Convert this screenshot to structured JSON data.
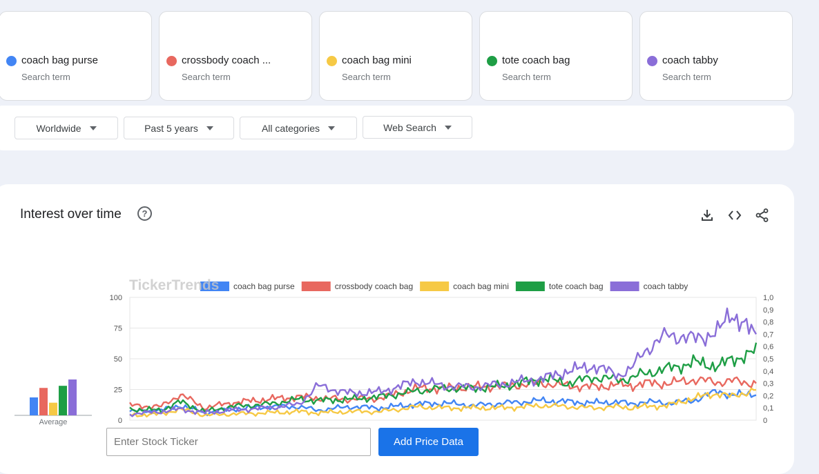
{
  "search_terms": [
    {
      "name": "coach bag purse",
      "sub": "Search term",
      "color": "#4285f4"
    },
    {
      "name": "crossbody coach ...",
      "sub": "Search term",
      "color": "#e8685f"
    },
    {
      "name": "coach bag mini",
      "sub": "Search term",
      "color": "#f6c945"
    },
    {
      "name": "tote coach bag",
      "sub": "Search term",
      "color": "#1e9e45"
    },
    {
      "name": "coach tabby",
      "sub": "Search term",
      "color": "#8a6ed8"
    }
  ],
  "filters": {
    "region": "Worldwide",
    "period": "Past 5 years",
    "category": "All categories",
    "search_type": "Web Search"
  },
  "panel": {
    "title": "Interest over time",
    "help": "?"
  },
  "average": {
    "label": "Average",
    "values": [
      17,
      26,
      12,
      28,
      34
    ]
  },
  "ticker": {
    "placeholder": "Enter Stock Ticker",
    "button": "Add Price Data"
  },
  "chart_data": {
    "type": "line",
    "watermark": "TickerTrends",
    "title": "",
    "xlabel": "",
    "ylabel": "",
    "ylim": [
      0,
      100
    ],
    "yticks": [
      0,
      25,
      50,
      75,
      100
    ],
    "y2lim": [
      0,
      1
    ],
    "y2ticks": [
      "0",
      "0,1",
      "0,2",
      "0,3",
      "0,4",
      "0,5",
      "0,6",
      "0,7",
      "0,8",
      "0,9",
      "1,0"
    ],
    "legend_position": "top",
    "grid": true,
    "series": [
      {
        "name": "coach bag purse",
        "color": "#4285f4",
        "anchors": [
          [
            0,
            7
          ],
          [
            0.05,
            8
          ],
          [
            0.08,
            12
          ],
          [
            0.12,
            6
          ],
          [
            0.16,
            9
          ],
          [
            0.22,
            11
          ],
          [
            0.27,
            11
          ],
          [
            0.3,
            8
          ],
          [
            0.35,
            11
          ],
          [
            0.4,
            10
          ],
          [
            0.46,
            13
          ],
          [
            0.5,
            14
          ],
          [
            0.55,
            12
          ],
          [
            0.6,
            14
          ],
          [
            0.66,
            16
          ],
          [
            0.7,
            15
          ],
          [
            0.74,
            14
          ],
          [
            0.78,
            15
          ],
          [
            0.8,
            13
          ],
          [
            0.82,
            15
          ],
          [
            0.86,
            14
          ],
          [
            0.9,
            16
          ],
          [
            0.94,
            24
          ],
          [
            0.96,
            20
          ],
          [
            1,
            22
          ]
        ]
      },
      {
        "name": "crossbody coach bag",
        "color": "#e8685f",
        "anchors": [
          [
            0,
            12
          ],
          [
            0.05,
            11
          ],
          [
            0.08,
            21
          ],
          [
            0.12,
            10
          ],
          [
            0.16,
            14
          ],
          [
            0.22,
            17
          ],
          [
            0.27,
            19
          ],
          [
            0.3,
            18
          ],
          [
            0.35,
            17
          ],
          [
            0.4,
            18
          ],
          [
            0.46,
            26
          ],
          [
            0.5,
            26
          ],
          [
            0.55,
            27
          ],
          [
            0.6,
            28
          ],
          [
            0.66,
            30
          ],
          [
            0.7,
            28
          ],
          [
            0.74,
            27
          ],
          [
            0.78,
            29
          ],
          [
            0.8,
            28
          ],
          [
            0.82,
            30
          ],
          [
            0.86,
            30
          ],
          [
            0.9,
            33
          ],
          [
            0.94,
            31
          ],
          [
            0.96,
            32
          ],
          [
            1,
            30
          ]
        ]
      },
      {
        "name": "coach bag mini",
        "color": "#f6c945",
        "anchors": [
          [
            0,
            4
          ],
          [
            0.05,
            5
          ],
          [
            0.08,
            9
          ],
          [
            0.12,
            4
          ],
          [
            0.16,
            5
          ],
          [
            0.22,
            6
          ],
          [
            0.27,
            7
          ],
          [
            0.3,
            6
          ],
          [
            0.35,
            7
          ],
          [
            0.4,
            7
          ],
          [
            0.46,
            11
          ],
          [
            0.5,
            10
          ],
          [
            0.55,
            10
          ],
          [
            0.6,
            10
          ],
          [
            0.66,
            12
          ],
          [
            0.7,
            11
          ],
          [
            0.74,
            10
          ],
          [
            0.78,
            11
          ],
          [
            0.8,
            10
          ],
          [
            0.82,
            11
          ],
          [
            0.86,
            12
          ],
          [
            0.9,
            18
          ],
          [
            0.94,
            22
          ],
          [
            0.96,
            19
          ],
          [
            1,
            25
          ]
        ]
      },
      {
        "name": "tote coach bag",
        "color": "#1e9e45",
        "anchors": [
          [
            0,
            9
          ],
          [
            0.05,
            8
          ],
          [
            0.08,
            15
          ],
          [
            0.12,
            7
          ],
          [
            0.16,
            11
          ],
          [
            0.22,
            13
          ],
          [
            0.27,
            17
          ],
          [
            0.3,
            16
          ],
          [
            0.35,
            17
          ],
          [
            0.4,
            19
          ],
          [
            0.46,
            24
          ],
          [
            0.5,
            26
          ],
          [
            0.55,
            26
          ],
          [
            0.6,
            28
          ],
          [
            0.66,
            34
          ],
          [
            0.7,
            30
          ],
          [
            0.74,
            35
          ],
          [
            0.78,
            33
          ],
          [
            0.8,
            34
          ],
          [
            0.82,
            38
          ],
          [
            0.86,
            42
          ],
          [
            0.9,
            47
          ],
          [
            0.94,
            44
          ],
          [
            0.96,
            49
          ],
          [
            1,
            56
          ]
        ]
      },
      {
        "name": "coach tabby",
        "color": "#8a6ed8",
        "anchors": [
          [
            0,
            5
          ],
          [
            0.05,
            7
          ],
          [
            0.08,
            9
          ],
          [
            0.12,
            6
          ],
          [
            0.16,
            8
          ],
          [
            0.22,
            10
          ],
          [
            0.27,
            13
          ],
          [
            0.3,
            28
          ],
          [
            0.35,
            22
          ],
          [
            0.4,
            23
          ],
          [
            0.46,
            32
          ],
          [
            0.5,
            28
          ],
          [
            0.55,
            27
          ],
          [
            0.6,
            30
          ],
          [
            0.66,
            34
          ],
          [
            0.7,
            40
          ],
          [
            0.74,
            44
          ],
          [
            0.78,
            37
          ],
          [
            0.8,
            41
          ],
          [
            0.82,
            56
          ],
          [
            0.86,
            70
          ],
          [
            0.9,
            66
          ],
          [
            0.94,
            72
          ],
          [
            0.96,
            88
          ],
          [
            1,
            68
          ]
        ]
      }
    ]
  }
}
